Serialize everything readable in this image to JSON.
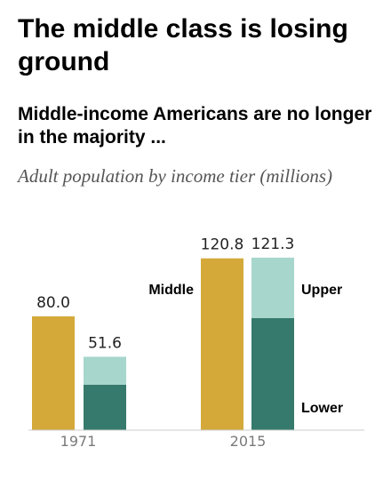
{
  "header": {
    "title": "The middle class is losing ground",
    "subtitle": "Middle-income Americans are no longer in the majority ...",
    "caption": "Adult population by income tier (millions)"
  },
  "colors": {
    "middle": "#d4a93a",
    "upper": "#a7d6cc",
    "lower": "#357a6c"
  },
  "chart_data": {
    "type": "bar",
    "categories": [
      "1971",
      "2015"
    ],
    "series": [
      {
        "name": "Middle",
        "values": [
          80.0,
          120.8
        ]
      },
      {
        "name": "Lower",
        "values": [
          null,
          null
        ]
      },
      {
        "name": "Upper",
        "values": [
          null,
          null
        ]
      }
    ],
    "data_labels": {
      "middle": [
        "80.0",
        "120.8"
      ],
      "lower_upper_total": [
        "51.6",
        "121.3"
      ]
    },
    "upper_share_of_stack": [
      0.38,
      0.35
    ],
    "series_labels": {
      "middle": "Middle",
      "upper": "Upper",
      "lower": "Lower"
    },
    "grid": false
  }
}
